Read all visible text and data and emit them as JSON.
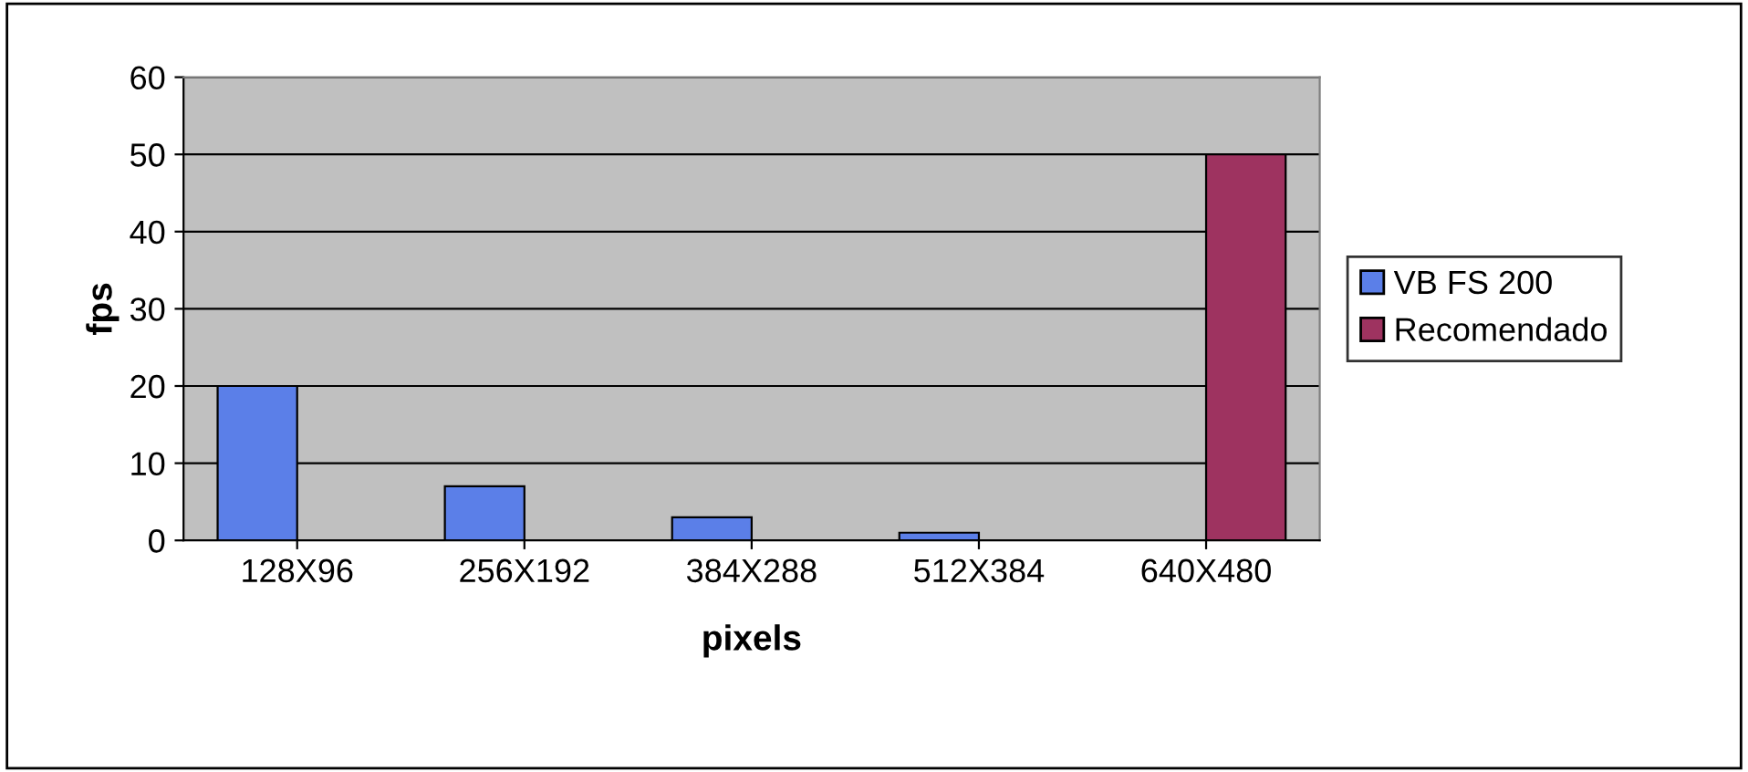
{
  "chart_data": {
    "type": "bar",
    "xlabel": "pixels",
    "ylabel": "fps",
    "categories": [
      "128X96",
      "256X192",
      "384X288",
      "512X384",
      "640X480"
    ],
    "series": [
      {
        "name": "VB FS 200",
        "color": "#5b7fe8",
        "values": [
          20,
          7,
          3,
          1,
          null
        ]
      },
      {
        "name": "Recomendado",
        "color": "#9e3360",
        "values": [
          null,
          null,
          null,
          null,
          50
        ]
      }
    ],
    "ylim": [
      0,
      60
    ],
    "yticks": [
      0,
      10,
      20,
      30,
      40,
      50,
      60
    ],
    "grid": "y",
    "legend": "right"
  }
}
